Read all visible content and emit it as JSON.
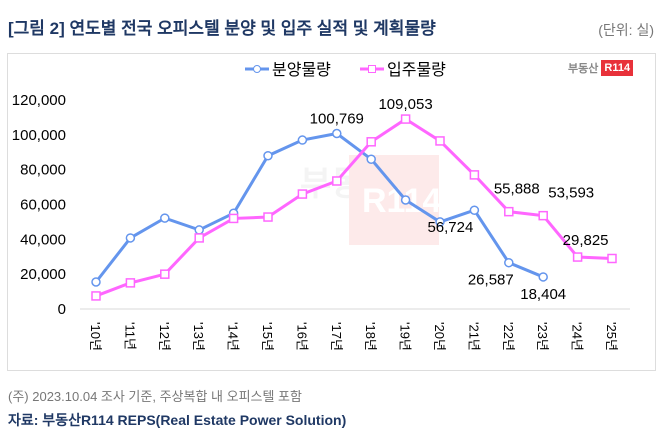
{
  "title": "[그림 2] 연도별 전국 오피스텔 분양 및 입주 실적 및 계획물량",
  "unit": "(단위: 실)",
  "logo": {
    "text": "부동산",
    "badge": "R114"
  },
  "note": "(주) 2023.10.04 조사 기준, 주상복합 내 오피스텔 포함",
  "source": "자료: 부동산R114 REPS(Real Estate Power Solution)",
  "chart_data": {
    "type": "line",
    "categories": [
      "'10년",
      "'11년",
      "'12년",
      "'13년",
      "'14년",
      "'15년",
      "'16년",
      "'17년",
      "'18년",
      "'19년",
      "'20년",
      "'21년",
      "'22년",
      "'23년",
      "'24년",
      "'25년"
    ],
    "ylim": [
      0,
      120000
    ],
    "yticks": [
      0,
      20000,
      40000,
      60000,
      80000,
      100000,
      120000
    ],
    "ytick_labels": [
      "0",
      "20,000",
      "40,000",
      "60,000",
      "80,000",
      "100,000",
      "120,000"
    ],
    "legend_position": "top-center",
    "series": [
      {
        "name": "분양물량",
        "color": "#6495ed",
        "marker": "circle",
        "values": [
          15500,
          40800,
          52200,
          45400,
          55000,
          88000,
          97000,
          100769,
          86000,
          62600,
          50000,
          56724,
          26587,
          18404,
          null,
          null
        ],
        "labels": {
          "7": "100,769",
          "11": "56,724",
          "12": "26,587",
          "13": "18,404"
        }
      },
      {
        "name": "입주물량",
        "color": "#ff66ff",
        "marker": "square",
        "values": [
          7500,
          15000,
          20000,
          40800,
          52000,
          52800,
          66000,
          73500,
          96000,
          109053,
          96500,
          77000,
          55888,
          53593,
          29825,
          29000
        ],
        "labels": {
          "9": "109,053",
          "12": "55,888",
          "13": "53,593",
          "14": "29,825"
        }
      }
    ]
  }
}
